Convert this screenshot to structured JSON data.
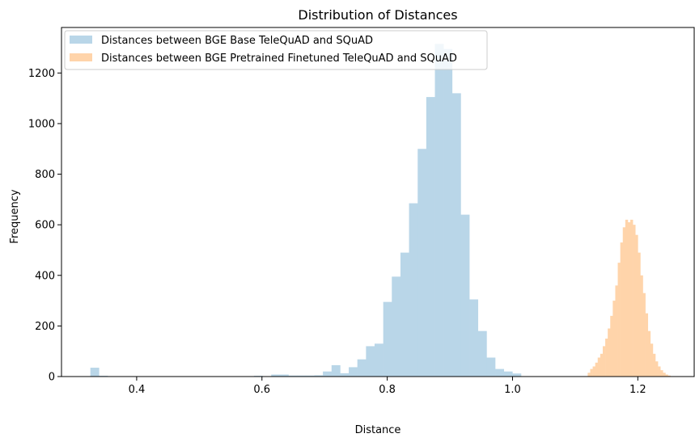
{
  "chart_data": {
    "type": "bar",
    "title": "Distribution of Distances",
    "xlabel": "Distance",
    "ylabel": "Frequency",
    "xlim": [
      0.28,
      1.29
    ],
    "ylim": [
      0,
      1380
    ],
    "x_ticks": [
      0.4,
      0.6,
      0.8,
      1.0,
      1.2
    ],
    "x_tick_labels": [
      "0.4",
      "0.6",
      "0.8",
      "1.0",
      "1.2"
    ],
    "y_ticks": [
      0,
      200,
      400,
      600,
      800,
      1000,
      1200
    ],
    "y_tick_labels": [
      "0",
      "200",
      "400",
      "600",
      "800",
      "1000",
      "1200"
    ],
    "grid": false,
    "legend_position": "top-left",
    "series": [
      {
        "name": "Distances between BGE Base TeleQuAD and SQuAD",
        "color": "#b9d6e8",
        "bin_edges": [
          0.3261,
          0.3398,
          0.3536,
          0.3673,
          0.3811,
          0.3948,
          0.4086,
          0.4223,
          0.4361,
          0.4498,
          0.4636,
          0.4773,
          0.4911,
          0.5048,
          0.5186,
          0.5323,
          0.5461,
          0.5598,
          0.5736,
          0.5873,
          0.6011,
          0.6148,
          0.6286,
          0.6423,
          0.6561,
          0.6698,
          0.6836,
          0.6973,
          0.7111,
          0.7248,
          0.7386,
          0.7523,
          0.7661,
          0.7798,
          0.7936,
          0.8073,
          0.8211,
          0.8348,
          0.8486,
          0.8623,
          0.8761,
          0.8898,
          0.9036,
          0.9173,
          0.9311,
          0.9448,
          0.9586,
          0.9723,
          0.9861,
          0.9998,
          1.0136,
          1.0273
        ],
        "counts": [
          35,
          3,
          0,
          0,
          0,
          0,
          0,
          0,
          0,
          0,
          0,
          0,
          0,
          0,
          0,
          0,
          0,
          0,
          0,
          3,
          0,
          8,
          8,
          4,
          4,
          4,
          5,
          20,
          45,
          13,
          37,
          68,
          120,
          130,
          295,
          395,
          490,
          685,
          900,
          1105,
          1315,
          1295,
          1120,
          640,
          305,
          180,
          75,
          30,
          20,
          12,
          0
        ]
      },
      {
        "name": "Distances between BGE Pretrained Finetuned TeleQuAD and SQuAD",
        "color": "#ffd4aa",
        "bin_edges": [
          1.12,
          1.124,
          1.128,
          1.132,
          1.136,
          1.14,
          1.144,
          1.148,
          1.152,
          1.156,
          1.16,
          1.164,
          1.168,
          1.172,
          1.176,
          1.18,
          1.184,
          1.188,
          1.192,
          1.196,
          1.2,
          1.204,
          1.208,
          1.212,
          1.216,
          1.22,
          1.224,
          1.228,
          1.232,
          1.236,
          1.24,
          1.244,
          1.248,
          1.252
        ],
        "counts": [
          15,
          30,
          40,
          55,
          75,
          90,
          120,
          150,
          190,
          240,
          300,
          360,
          450,
          530,
          590,
          620,
          610,
          620,
          600,
          560,
          490,
          400,
          330,
          250,
          180,
          130,
          90,
          60,
          40,
          25,
          15,
          8,
          4
        ]
      }
    ]
  }
}
